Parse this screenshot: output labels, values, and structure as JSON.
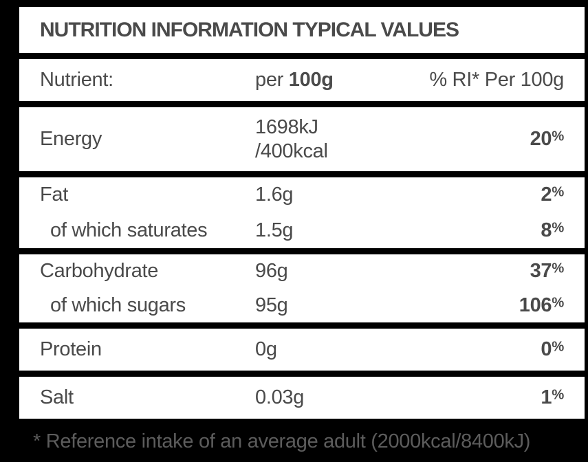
{
  "table": {
    "title": "NUTRITION INFORMATION TYPICAL VALUES",
    "column_headers": {
      "nutrient": "Nutrient:",
      "per_prefix": "per ",
      "per_bold": "100g",
      "ri": "% RI* Per 100g"
    },
    "rows": [
      {
        "label": "Energy",
        "value": "1698kJ",
        "value2": "/400kcal",
        "ri_num": "20",
        "ri_sym": "%"
      },
      {
        "label": "Fat",
        "value": "1.6g",
        "ri_num": "2",
        "ri_sym": "%"
      },
      {
        "label": "of which saturates",
        "value": "1.5g",
        "ri_num": "8",
        "ri_sym": "%"
      },
      {
        "label": "Carbohydrate",
        "value": "96g",
        "ri_num": "37",
        "ri_sym": "%"
      },
      {
        "label": "of which sugars",
        "value": "95g",
        "ri_num": "106",
        "ri_sym": "%"
      },
      {
        "label": "Protein",
        "value": "0g",
        "ri_num": "0",
        "ri_sym": "%"
      },
      {
        "label": "Salt",
        "value": "0.03g",
        "ri_num": "1",
        "ri_sym": "%"
      }
    ],
    "footnote": "* Reference intake of an average adult (2000kcal/8400kJ)"
  },
  "colors": {
    "background": "#000000",
    "row_bg": "#ffffff",
    "text": "#4a4a4a",
    "footnote_text": "#5c5c5c"
  }
}
